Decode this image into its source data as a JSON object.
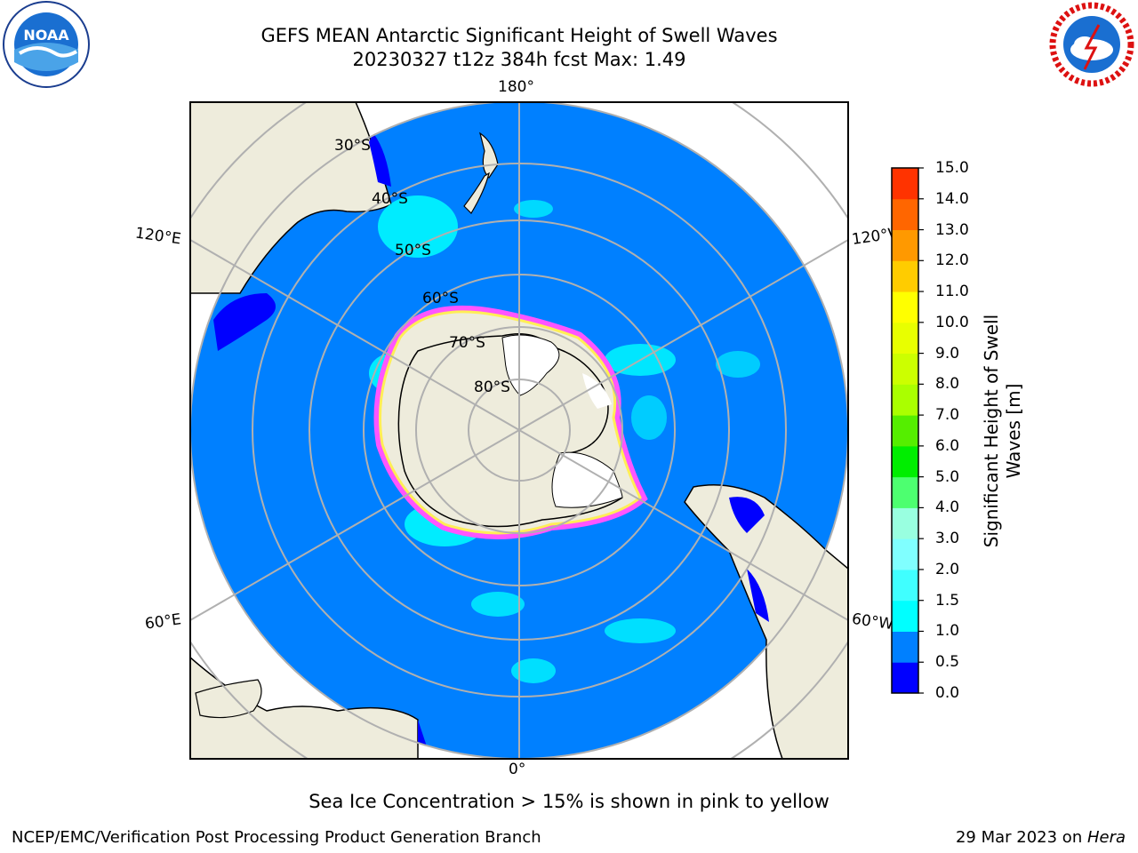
{
  "header": {
    "title_line1": "GEFS MEAN Antarctic Significant Height of Swell Waves",
    "title_line2": "20230327 t12z 384h fcst   Max: 1.49"
  },
  "logos": {
    "left_icon": "noaa-logo",
    "right_icon": "national-weather-service-logo"
  },
  "map": {
    "projection": "south-polar-stereographic",
    "longitude_labels": {
      "top": "180°",
      "bottom": "0°",
      "upper_left": "120°E",
      "upper_right": "120°W",
      "lower_left": "60°E",
      "lower_right": "60°W"
    },
    "latitude_labels": {
      "lat30": "30°S",
      "lat40": "40°S",
      "lat50": "50°S",
      "lat60": "60°S",
      "lat70": "70°S",
      "lat80": "80°S"
    },
    "colors": {
      "ocean_main": "#0080ff",
      "land": "#eeecdc",
      "ice_edge": "#ff55ff",
      "coast_wave": "#0000ff",
      "swell_patch": "#00ffff"
    }
  },
  "colorbar": {
    "label": "Significant Height of Swell Waves [m]",
    "ticks": [
      "0.0",
      "0.5",
      "1.0",
      "1.5",
      "2.0",
      "3.0",
      "4.0",
      "5.0",
      "6.0",
      "7.0",
      "8.0",
      "9.0",
      "10.0",
      "11.0",
      "12.0",
      "13.0",
      "14.0",
      "15.0"
    ],
    "colors": [
      "#0000ff",
      "#0080ff",
      "#00ffff",
      "#40ffff",
      "#80ffff",
      "#99ffe0",
      "#4dff70",
      "#00ee00",
      "#55ee00",
      "#aaff00",
      "#ccff00",
      "#e8ff00",
      "#ffff00",
      "#ffcc00",
      "#ff9900",
      "#ff6600",
      "#ff3300",
      "#ff0000"
    ]
  },
  "note": "Sea Ice Concentration > 15% is shown in pink to yellow",
  "footer": {
    "left": "NCEP/EMC/Verification Post Processing Product Generation Branch",
    "right_prefix": "29 Mar 2023 on ",
    "right_host": "Hera"
  }
}
